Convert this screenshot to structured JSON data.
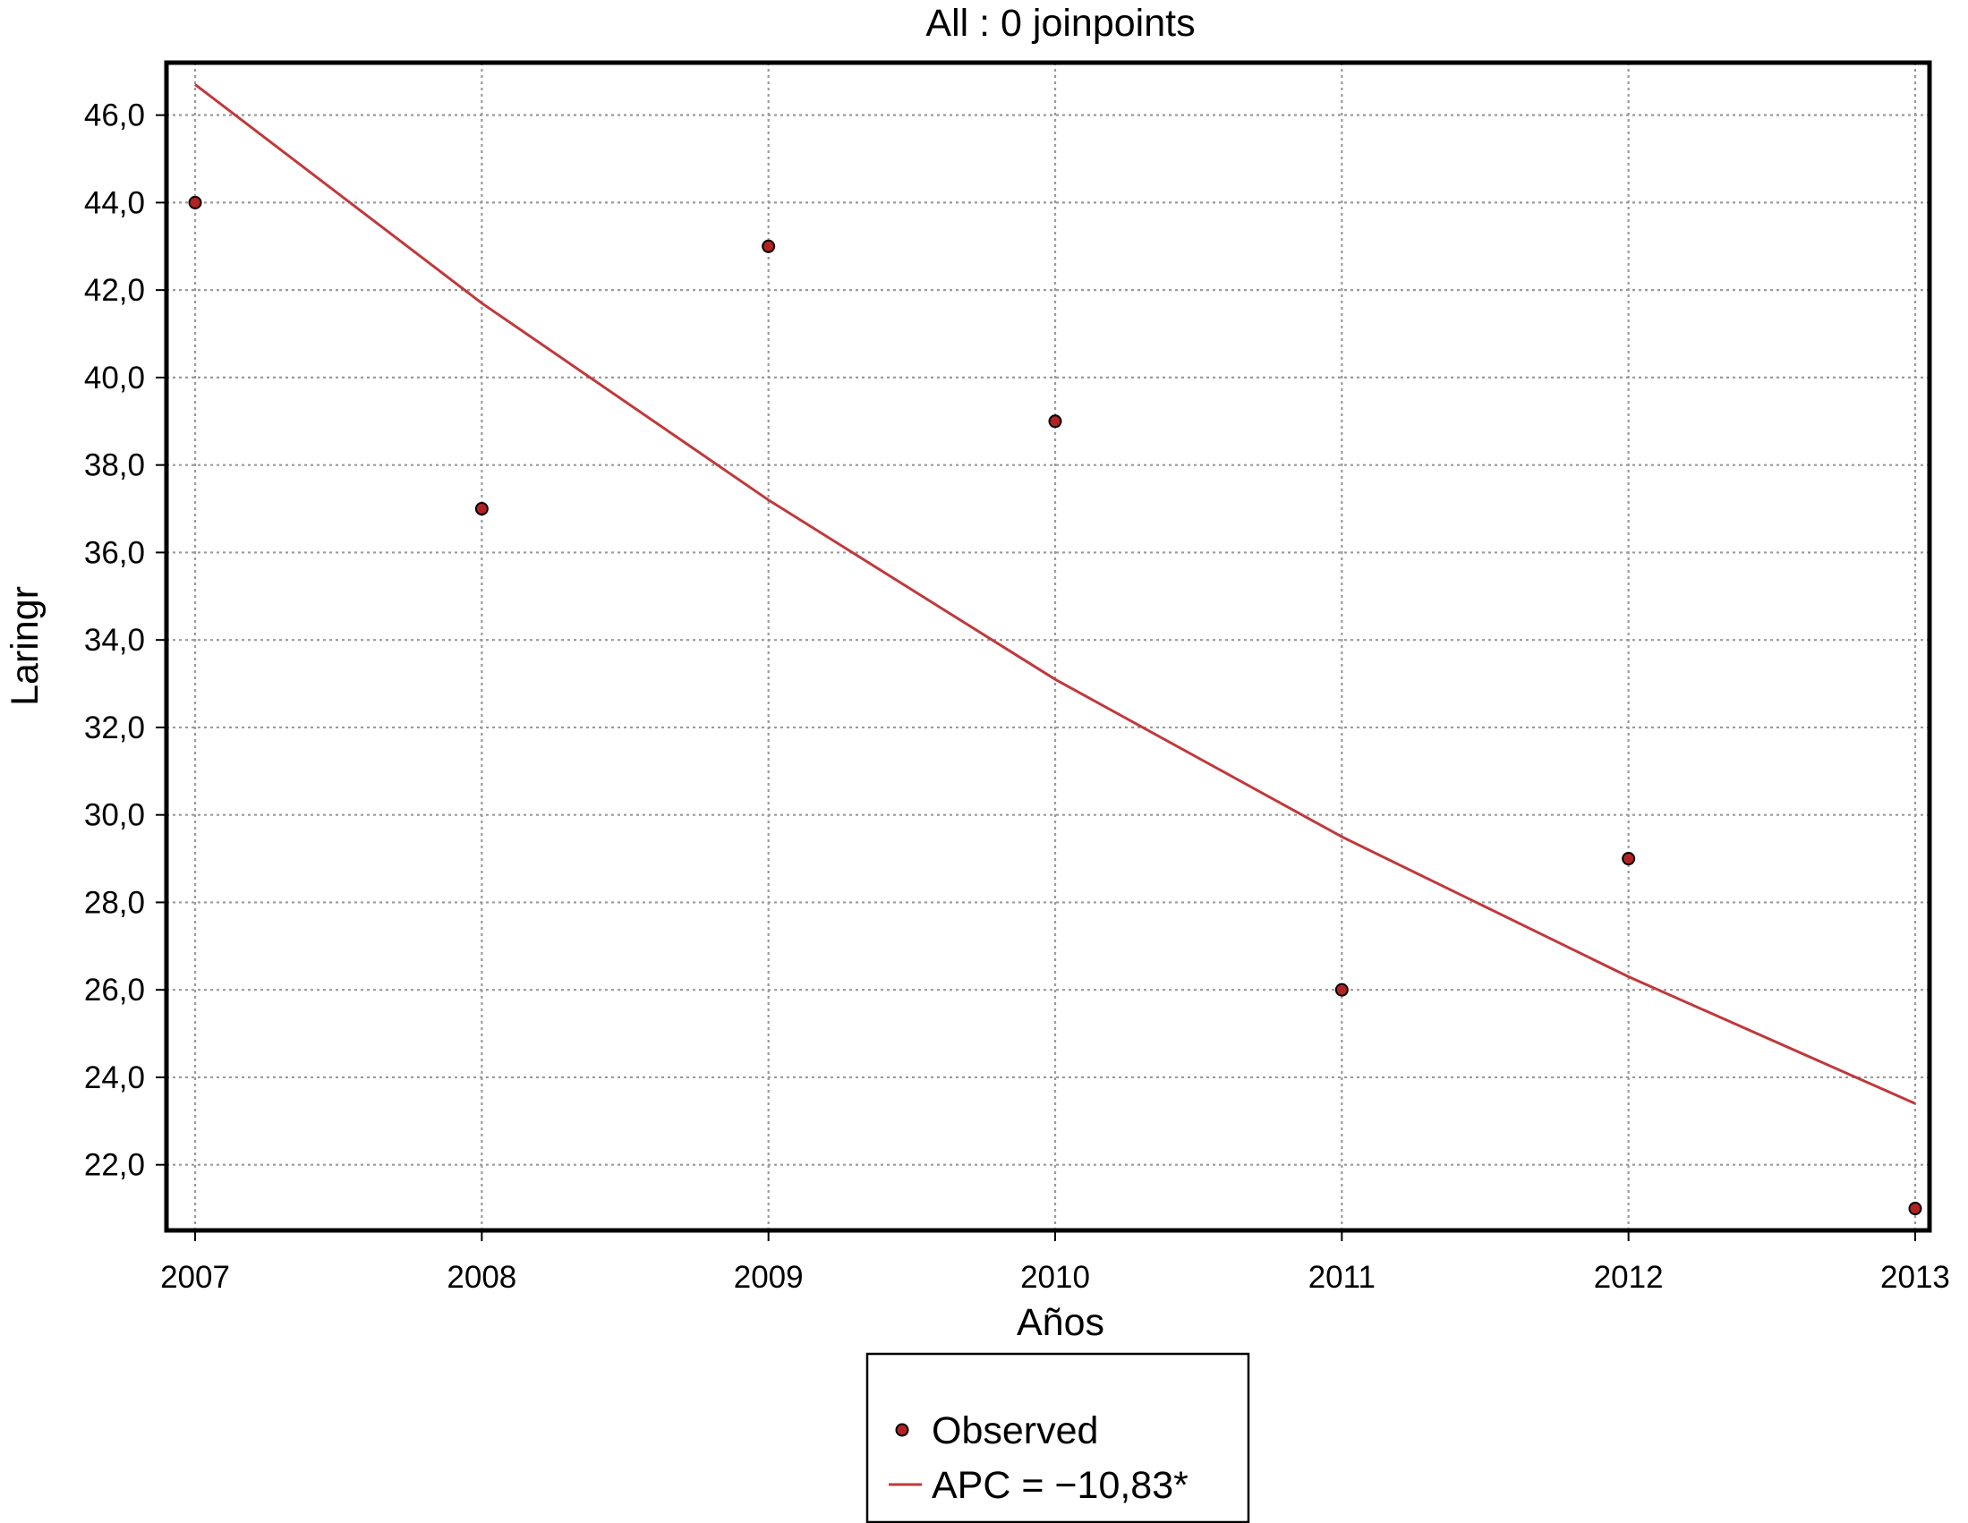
{
  "chart_data": {
    "type": "scatter",
    "title": "All : 0 joinpoints",
    "xlabel": "Años",
    "ylabel": "Laringr",
    "x": [
      2007,
      2008,
      2009,
      2010,
      2011,
      2012,
      2013
    ],
    "x_tick_labels": [
      "2007",
      "2008",
      "2009",
      "2010",
      "2011",
      "2012",
      "2013"
    ],
    "y_ticks": [
      22,
      24,
      26,
      28,
      30,
      32,
      34,
      36,
      38,
      40,
      42,
      44,
      46
    ],
    "y_tick_labels": [
      "22,0",
      "24,0",
      "26,0",
      "28,0",
      "30,0",
      "32,0",
      "34,0",
      "36,0",
      "38,0",
      "40,0",
      "42,0",
      "44,0",
      "46,0"
    ],
    "xlim": [
      2006.9,
      2013.05
    ],
    "ylim": [
      20.5,
      47.2
    ],
    "grid": true,
    "legend_position": "bottom-center",
    "series": [
      {
        "name": "Observed",
        "kind": "points",
        "values": [
          44.0,
          37.0,
          43.0,
          39.0,
          26.0,
          29.0,
          21.0
        ],
        "color": "#b22222"
      },
      {
        "name": "APC = −10,83*",
        "kind": "line",
        "values": [
          46.7,
          41.7,
          37.2,
          33.1,
          29.5,
          26.3,
          23.4
        ],
        "color": "#c0393b"
      }
    ]
  }
}
